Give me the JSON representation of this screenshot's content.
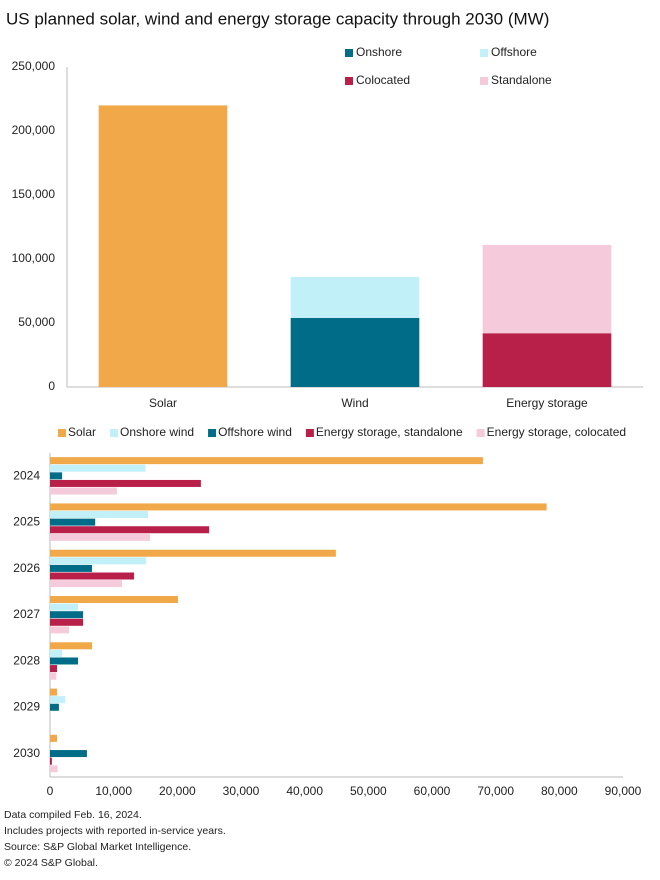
{
  "chart_data": [
    {
      "type": "stacked_bar",
      "title": "US planned solar, wind and energy storage capacity through 2030 (MW)",
      "categories": [
        "Solar",
        "Wind",
        "Energy storage"
      ],
      "series": [
        {
          "color": "#F0A848",
          "values": [
            220000,
            null,
            null
          ]
        },
        {
          "name": "Onshore",
          "color": "#006C88",
          "values": [
            null,
            54000,
            null
          ]
        },
        {
          "name": "Offshore",
          "color": "#C2F0F8",
          "values": [
            null,
            32000,
            null
          ]
        },
        {
          "name": "Colocated",
          "color": "#B8204A",
          "values": [
            null,
            null,
            42000
          ]
        },
        {
          "name": "Standalone",
          "color": "#F5CADA",
          "values": [
            null,
            null,
            69000
          ]
        }
      ],
      "ylim": [
        0,
        250000
      ],
      "yticks": [
        0,
        {
          "value": 50000,
          "label": "50,000"
        },
        {
          "value": 100000,
          "label": "100,000"
        },
        {
          "value": 150000,
          "label": "150,000"
        },
        {
          "value": 200000,
          "label": "200,000"
        },
        {
          "value": 250000,
          "label": "250,000"
        }
      ],
      "grid": false,
      "legend": "upper right"
    },
    {
      "type": "grouped_hbar",
      "categories": [
        "2024",
        "2025",
        "2026",
        "2027",
        "2028",
        "2029",
        "2030"
      ],
      "series": [
        {
          "name": "Solar",
          "color": "#F0A848",
          "values": [
            68000,
            78000,
            44900,
            20100,
            6600,
            1100,
            1100
          ]
        },
        {
          "name": "Onshore wind",
          "color": "#C2F0F8",
          "values": [
            15000,
            15400,
            15100,
            4400,
            1900,
            2400,
            0
          ]
        },
        {
          "name": "Offshore wind",
          "color": "#006C88",
          "values": [
            1900,
            7100,
            6600,
            5200,
            4400,
            1400,
            5800
          ]
        },
        {
          "name": "Energy storage, standalone",
          "color": "#B8204A",
          "values": [
            23700,
            25000,
            13200,
            5200,
            1100,
            0,
            300
          ]
        },
        {
          "name": "Energy storage, colocated",
          "color": "#F5CADA",
          "values": [
            10500,
            15700,
            11300,
            3000,
            1000,
            0,
            1200
          ]
        }
      ],
      "xlim": [
        0,
        90000
      ],
      "xticks": [
        0,
        {
          "value": 10000,
          "label": "10,000"
        },
        {
          "value": 20000,
          "label": "20,000"
        },
        {
          "value": 30000,
          "label": "30,000"
        },
        {
          "value": 40000,
          "label": "40,000"
        },
        {
          "value": 50000,
          "label": "50,000"
        },
        {
          "value": 60000,
          "label": "60,000"
        },
        {
          "value": 70000,
          "label": "70,000"
        },
        {
          "value": 80000,
          "label": "80,000"
        },
        {
          "value": 90000,
          "label": "90,000"
        }
      ],
      "grid": false,
      "legend": "top"
    }
  ],
  "footer": [
    "Data compiled Feb. 16, 2024.",
    "Includes projects with reported in-service years.",
    "Source: S&P Global Market Intelligence.",
    "© 2024 S&P Global."
  ]
}
